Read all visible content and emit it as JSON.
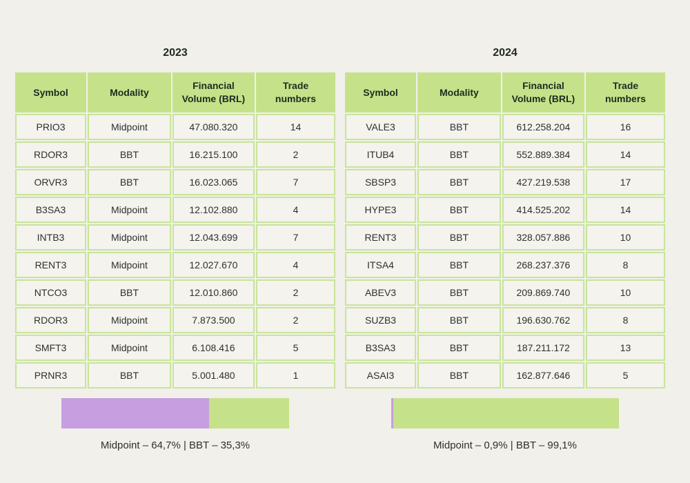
{
  "headers": {
    "symbol": "Symbol",
    "modality": "Modality",
    "volume_line1": "Financial",
    "volume_line2": "Volume (BRL)",
    "trades_line1": "Trade",
    "trades_line2": "numbers"
  },
  "panels": [
    {
      "year": "2023",
      "rows": [
        {
          "symbol": "PRIO3",
          "modality": "Midpoint",
          "volume": "47.080.320",
          "trades": "14"
        },
        {
          "symbol": "RDOR3",
          "modality": "BBT",
          "volume": "16.215.100",
          "trades": "2"
        },
        {
          "symbol": "ORVR3",
          "modality": "BBT",
          "volume": "16.023.065",
          "trades": "7"
        },
        {
          "symbol": "B3SA3",
          "modality": "Midpoint",
          "volume": "12.102.880",
          "trades": "4"
        },
        {
          "symbol": "INTB3",
          "modality": "Midpoint",
          "volume": "12.043.699",
          "trades": "7"
        },
        {
          "symbol": "RENT3",
          "modality": "Midpoint",
          "volume": "12.027.670",
          "trades": "4"
        },
        {
          "symbol": "NTCO3",
          "modality": "BBT",
          "volume": "12.010.860",
          "trades": "2"
        },
        {
          "symbol": "RDOR3",
          "modality": "Midpoint",
          "volume": "7.873.500",
          "trades": "2"
        },
        {
          "symbol": "SMFT3",
          "modality": "Midpoint",
          "volume": "6.108.416",
          "trades": "5"
        },
        {
          "symbol": "PRNR3",
          "modality": "BBT",
          "volume": "5.001.480",
          "trades": "1"
        }
      ],
      "split": {
        "midpoint_pct": 64.7,
        "bbt_pct": 35.3
      },
      "caption": "Midpoint – 64,7% | BBT – 35,3%"
    },
    {
      "year": "2024",
      "rows": [
        {
          "symbol": "VALE3",
          "modality": "BBT",
          "volume": "612.258.204",
          "trades": "16"
        },
        {
          "symbol": "ITUB4",
          "modality": "BBT",
          "volume": "552.889.384",
          "trades": "14"
        },
        {
          "symbol": "SBSP3",
          "modality": "BBT",
          "volume": "427.219.538",
          "trades": "17"
        },
        {
          "symbol": "HYPE3",
          "modality": "BBT",
          "volume": "414.525.202",
          "trades": "14"
        },
        {
          "symbol": "RENT3",
          "modality": "BBT",
          "volume": "328.057.886",
          "trades": "10"
        },
        {
          "symbol": "ITSA4",
          "modality": "BBT",
          "volume": "268.237.376",
          "trades": "8"
        },
        {
          "symbol": "ABEV3",
          "modality": "BBT",
          "volume": "209.869.740",
          "trades": "10"
        },
        {
          "symbol": "SUZB3",
          "modality": "BBT",
          "volume": "196.630.762",
          "trades": "8"
        },
        {
          "symbol": "B3SA3",
          "modality": "BBT",
          "volume": "187.211.172",
          "trades": "13"
        },
        {
          "symbol": "ASAI3",
          "modality": "BBT",
          "volume": "162.877.646",
          "trades": "5"
        }
      ],
      "split": {
        "midpoint_pct": 0.9,
        "bbt_pct": 99.1
      },
      "caption": "Midpoint – 0,9% | BBT – 99,1%"
    }
  ],
  "colors": {
    "midpoint": "#c79ee0",
    "bbt": "#c5e28a",
    "header_bg": "#c5e28a",
    "cell_border": "#c9e49a",
    "background": "#f1f0ea"
  }
}
